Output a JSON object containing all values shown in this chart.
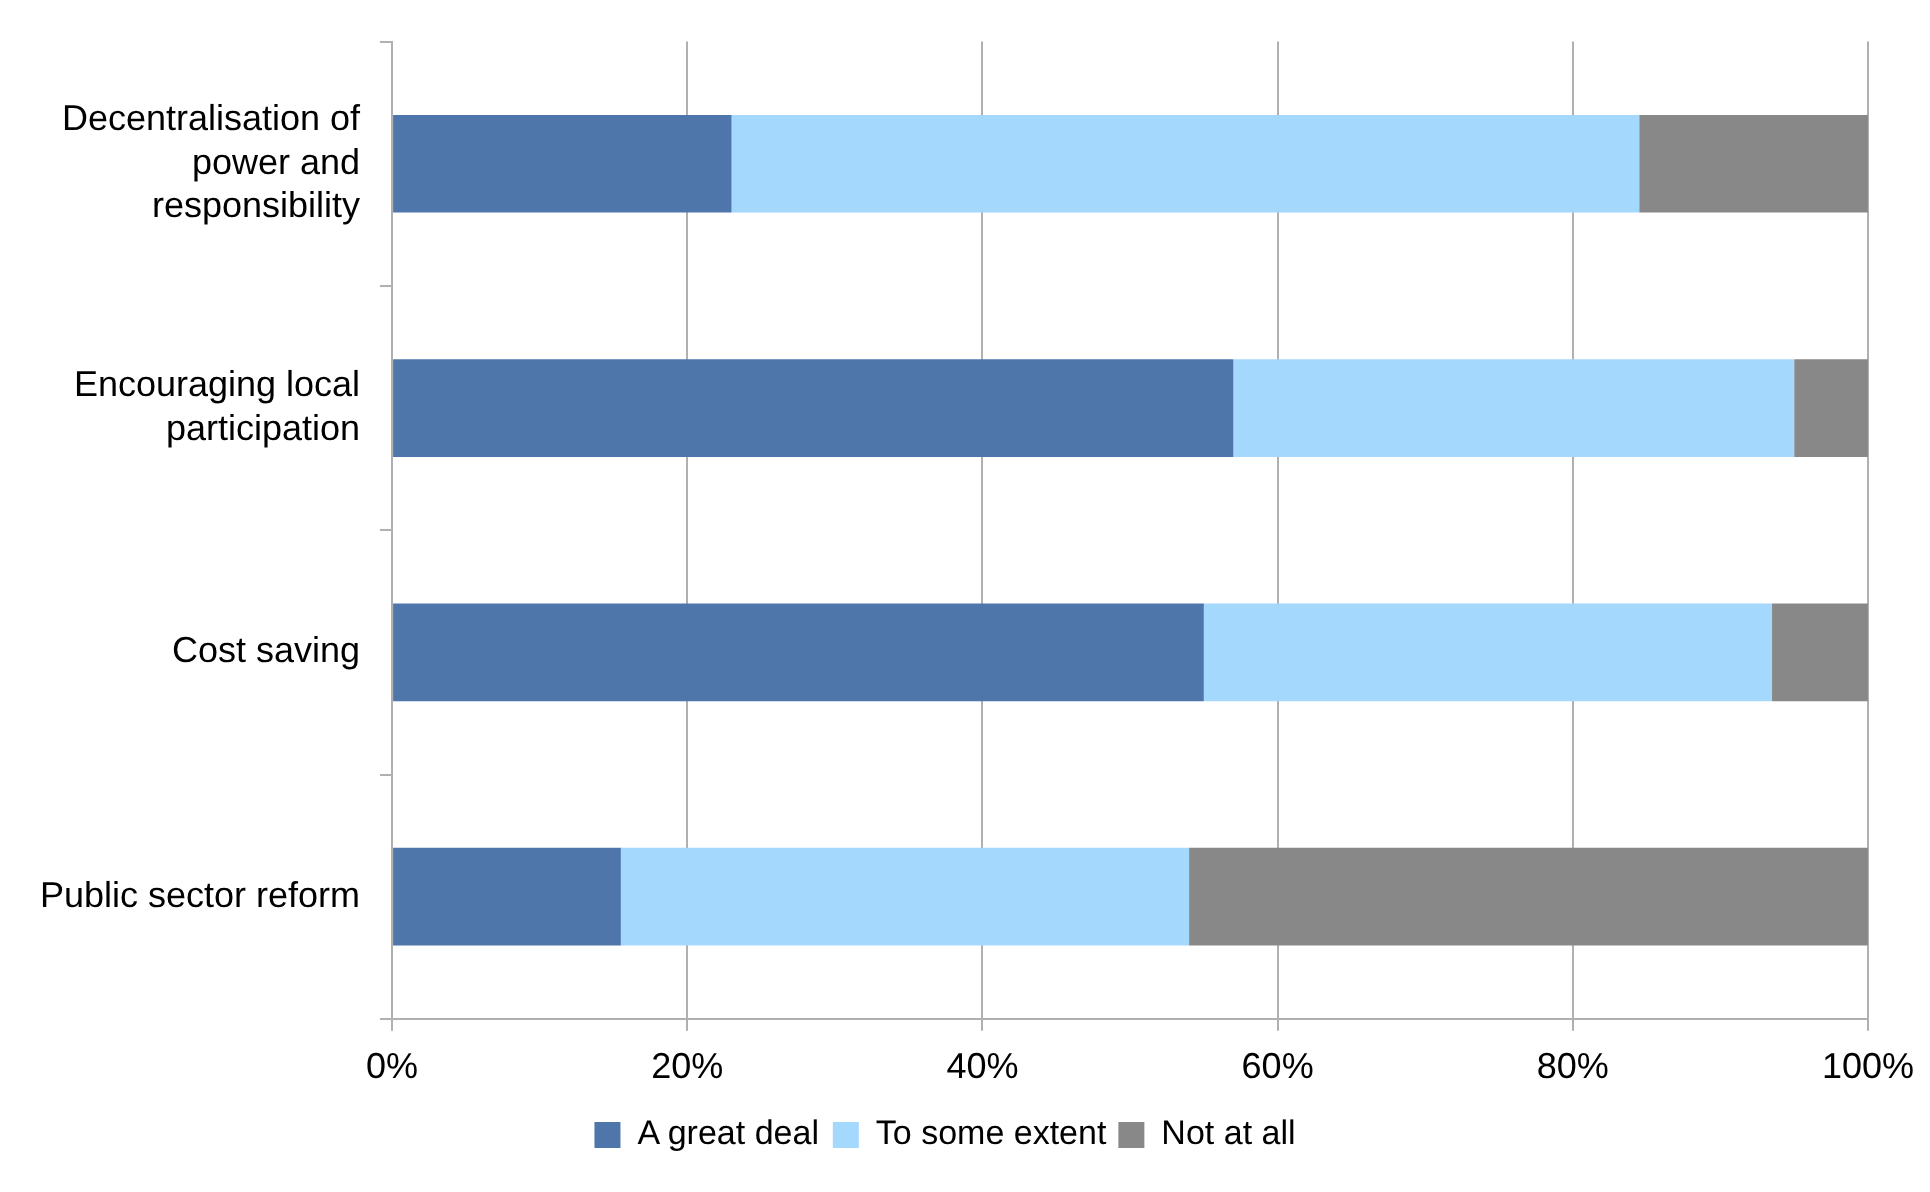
{
  "chart_data": {
    "type": "bar",
    "orientation": "horizontal",
    "stacked": true,
    "categories": [
      "Decentralisation of power and responsibility",
      "Encouraging local participation",
      "Cost saving",
      "Public sector reform"
    ],
    "series": [
      {
        "name": "A great deal",
        "color": "#4e76ab",
        "values": [
          23,
          57,
          55,
          15.5
        ]
      },
      {
        "name": "To some extent",
        "color": "#a5d8fd",
        "values": [
          61.5,
          38,
          38.5,
          38.5
        ]
      },
      {
        "name": "Not at all",
        "color": "#888888",
        "values": [
          15.5,
          5,
          6.5,
          46
        ]
      }
    ],
    "xlim": [
      0,
      100
    ],
    "xticks": [
      {
        "value": 0,
        "label": "0%"
      },
      {
        "value": 20,
        "label": "20%"
      },
      {
        "value": 40,
        "label": "40%"
      },
      {
        "value": 60,
        "label": "60%"
      },
      {
        "value": 80,
        "label": "80%"
      },
      {
        "value": 100,
        "label": "100%"
      }
    ],
    "grid": "x",
    "legend": "bottom"
  }
}
